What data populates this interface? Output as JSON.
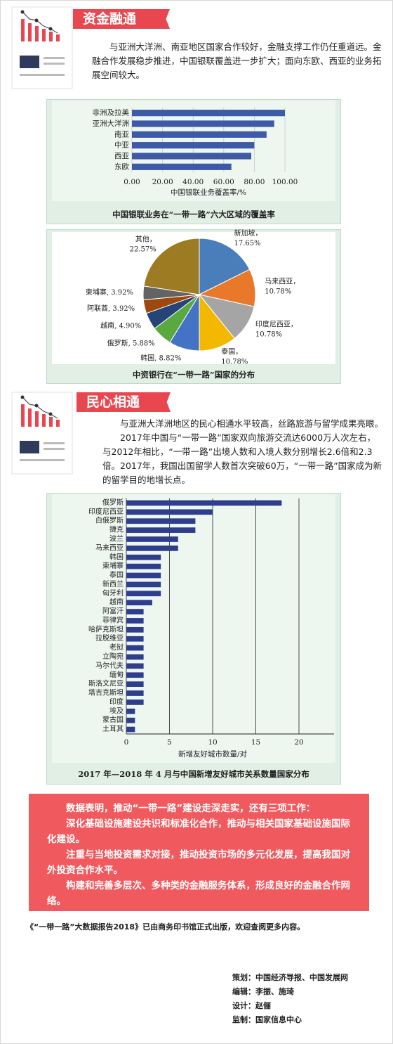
{
  "sections": [
    {
      "title": "资金融通",
      "paragraphs": [
        "与亚洲大洋洲、南亚地区国家合作较好，金融支撑工作仍任重道远。金融合作发展稳步推进，中国银联覆盖进一步扩大；面向东欧、西亚的业务拓展空间较大。"
      ]
    },
    {
      "title": "民心相通",
      "paragraphs": [
        "与亚洲大洋洲地区的民心相通水平较高，丝路旅游与留学成果亮眼。",
        "2017年中国与“一带一路”国家双向旅游交流达6000万人次左右，与2012年相比，“一带一路”出境人数和入境人数分别增长2.6倍和2.3倍。",
        "2017年，我国出国留学人数首次突破60万，“一带一路”国家成为新的留学目的地增长点。"
      ]
    }
  ],
  "chart_data": [
    {
      "type": "bar",
      "orientation": "horizontal",
      "title": "中国银联业务在“一带一路”六大区域的覆盖率",
      "x_label": "中国银联业务覆盖率/%",
      "categories": [
        "非洲及拉美",
        "亚洲大洋洲",
        "南亚",
        "中亚",
        "西亚",
        "东欧"
      ],
      "values": [
        100,
        93,
        88,
        80,
        78,
        65
      ],
      "color": "#3d5aa6",
      "xlim": [
        0,
        100
      ],
      "xticks": [
        {
          "value": 0,
          "label": "0.00"
        },
        {
          "value": 20,
          "label": "20.00"
        },
        {
          "value": 40,
          "label": "40.00"
        },
        {
          "value": 60,
          "label": "60.00"
        },
        {
          "value": 80,
          "label": "80.00"
        },
        {
          "value": 100,
          "label": "100.00"
        }
      ],
      "grid": true
    },
    {
      "type": "pie",
      "title": "中资银行在“一带一路”国家的分布",
      "categories": [
        "新加坡，",
        "马来西亚，",
        "印度尼西亚，",
        "泰国，",
        "韩国, ",
        "俄罗斯, ",
        "越南, ",
        "阿联酋, ",
        "柬埔寨, ",
        "其他，"
      ],
      "values": [
        17.65,
        10.78,
        10.78,
        10.78,
        8.82,
        5.88,
        4.9,
        3.92,
        3.92,
        22.57
      ],
      "value_labels": [
        "17.65%",
        "10.78%",
        "10.78%",
        "10.78%",
        "8.82%",
        "5.88%",
        "4.90%",
        "3.92%",
        "3.92%",
        "22.57%"
      ],
      "colors": [
        "#4a7ebb",
        "#e8782a",
        "#a5a5a5",
        "#f2b900",
        "#4472c4",
        "#5aa840",
        "#264478",
        "#9e480e",
        "#636363",
        "#9c7b22"
      ]
    },
    {
      "type": "bar",
      "orientation": "horizontal",
      "title": "2017 年—2018 年 4 月与中国新增友好城市关系数量国家分布",
      "x_label": "新增友好城市数量/对",
      "categories": [
        "俄罗斯",
        "印度尼西亚",
        "白俄罗斯",
        "捷克",
        "波兰",
        "马来西亚",
        "韩国",
        "柬埔寨",
        "泰国",
        "新西兰",
        "匈牙利",
        "越南",
        "阿富汗",
        "菲律宾",
        "哈萨克斯坦",
        "拉脱维亚",
        "老挝",
        "立陶宛",
        "马尔代夫",
        "缅甸",
        "斯洛文尼亚",
        "塔吉克斯坦",
        "印度",
        "埃及",
        "蒙古国",
        "土耳其"
      ],
      "values": [
        18,
        10,
        8,
        8,
        6,
        6,
        4,
        4,
        4,
        4,
        4,
        3,
        2,
        2,
        2,
        2,
        2,
        2,
        2,
        2,
        2,
        2,
        2,
        1,
        1,
        1
      ],
      "color": "#2e3e8c",
      "xlim": [
        0,
        20
      ],
      "xticks": [
        0,
        5,
        10,
        15,
        20
      ],
      "grid": true
    }
  ],
  "summary": {
    "paragraphs": [
      "数据表明，推动“一带一路”建设走深走实，还有三项工作：",
      "深化基础设施建设共识和标准化合作，推动与相关国家基础设施国际化建设。",
      "注重与当地投资需求对接，推动投资市场的多元化发展，提高我国对外投资合作水平。",
      "构建和完善多层次、多种类的金融服务体系，形成良好的金融合作网络。"
    ]
  },
  "note": "《“一带一路”大数据报告2018》已由商务印书馆正式出版，欢迎查阅更多内容。",
  "credits": [
    "策划：中国经济导报、中国发展网",
    "编辑：李振、施琦",
    "设计：赵俪",
    "监制：国家信息中心"
  ]
}
